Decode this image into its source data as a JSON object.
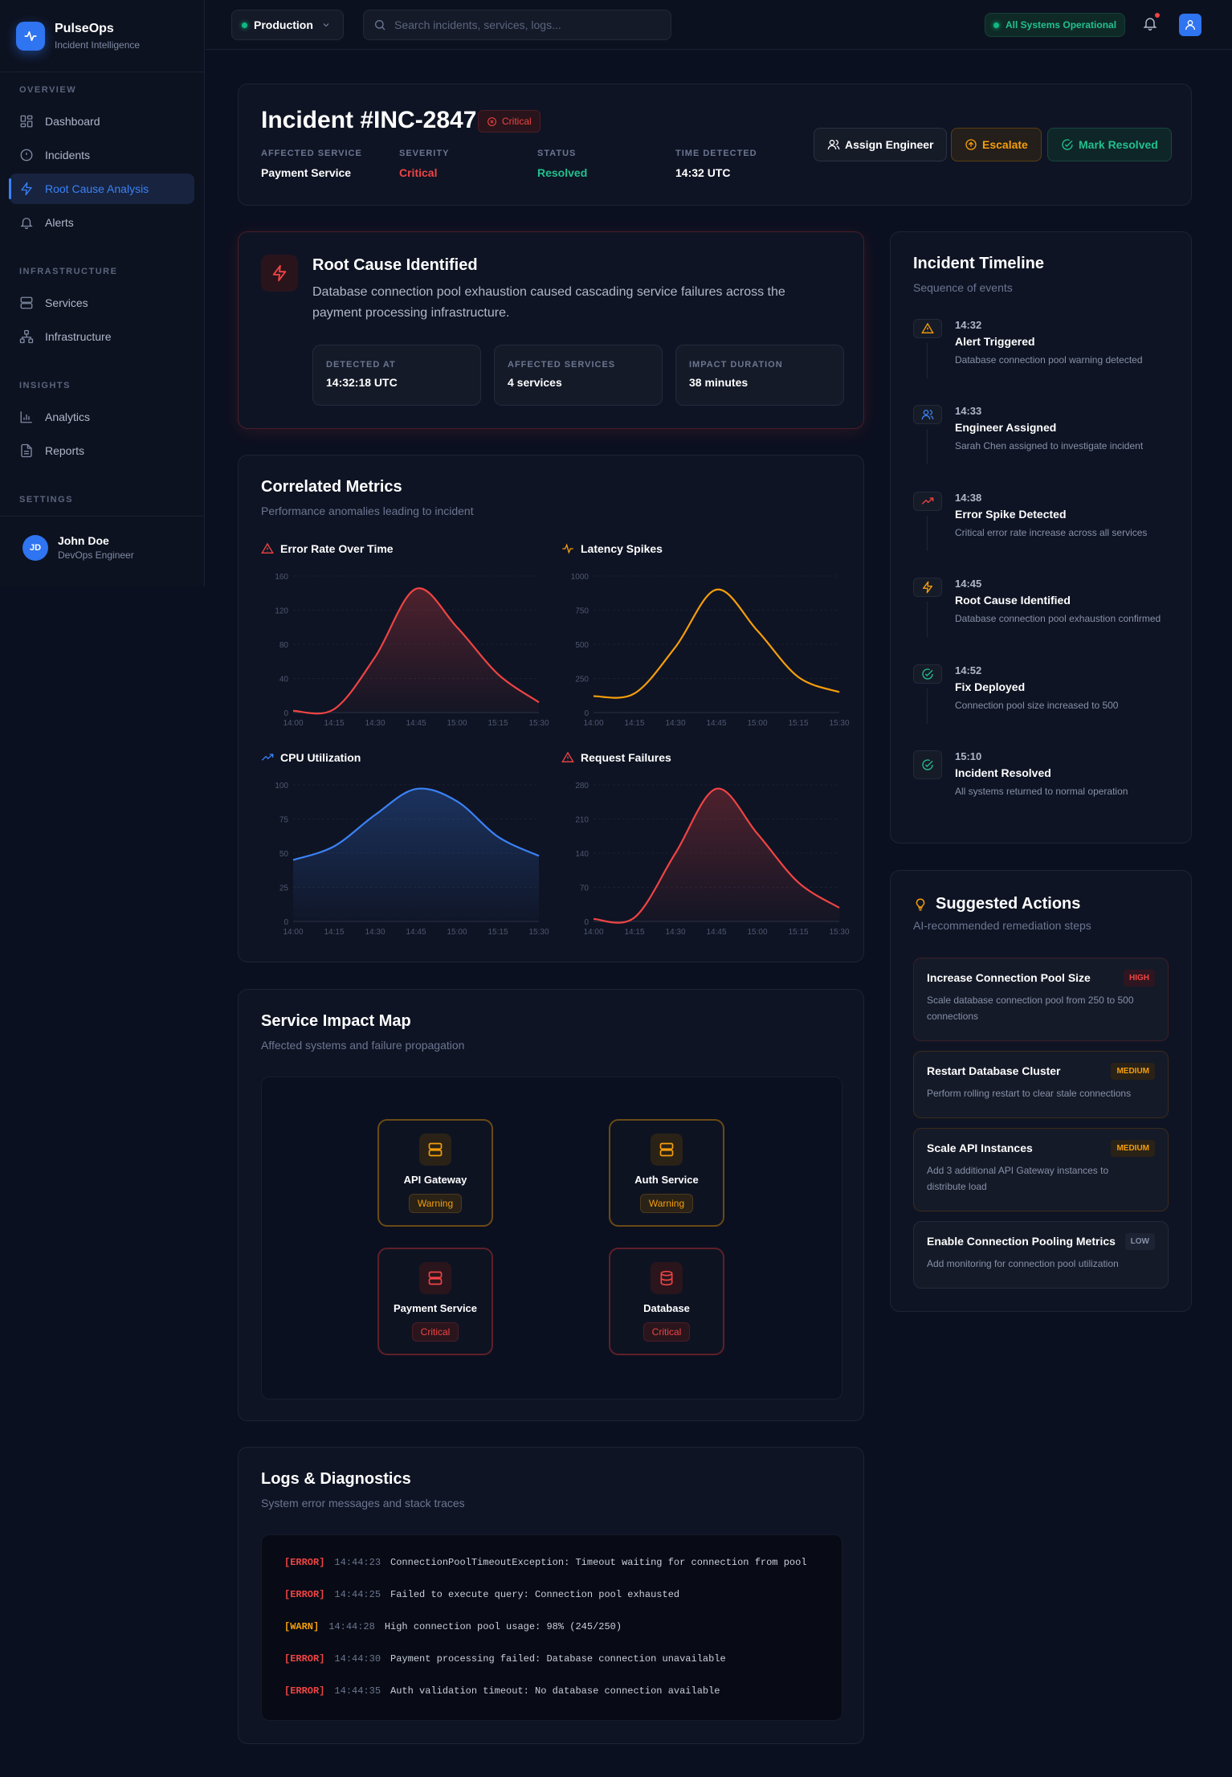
{
  "app": {
    "name": "PulseOps",
    "tagline": "Incident Intelligence"
  },
  "sidebar": {
    "sections": [
      {
        "label": "OVERVIEW",
        "items": [
          {
            "label": "Dashboard",
            "icon": "grid-icon",
            "active": false
          },
          {
            "label": "Incidents",
            "icon": "alert-circle-icon",
            "active": false
          },
          {
            "label": "Root Cause Analysis",
            "icon": "zap-icon",
            "active": true
          },
          {
            "label": "Alerts",
            "icon": "bell-icon",
            "active": false
          }
        ]
      },
      {
        "label": "INFRASTRUCTURE",
        "items": [
          {
            "label": "Services",
            "icon": "server-icon",
            "active": false
          },
          {
            "label": "Infrastructure",
            "icon": "network-icon",
            "active": false
          }
        ]
      },
      {
        "label": "INSIGHTS",
        "items": [
          {
            "label": "Analytics",
            "icon": "bar-chart-icon",
            "active": false
          },
          {
            "label": "Reports",
            "icon": "file-icon",
            "active": false
          }
        ]
      },
      {
        "label": "SETTINGS",
        "items": []
      }
    ],
    "user": {
      "initials": "JD",
      "name": "John Doe",
      "role": "DevOps Engineer"
    }
  },
  "topbar": {
    "environment": "Production",
    "search_placeholder": "Search incidents, services, logs...",
    "system_status": "All Systems Operational"
  },
  "incident": {
    "title": "Incident #INC-2847",
    "badge": "Critical",
    "meta": [
      {
        "label": "AFFECTED SERVICE",
        "value": "Payment Service",
        "color": "#ffffff"
      },
      {
        "label": "SEVERITY",
        "value": "Critical",
        "color": "#ef4444"
      },
      {
        "label": "STATUS",
        "value": "Resolved",
        "color": "#22c08e"
      },
      {
        "label": "TIME DETECTED",
        "value": "14:32 UTC",
        "color": "#ffffff"
      }
    ],
    "actions": {
      "assign": "Assign Engineer",
      "escalate": "Escalate",
      "resolve": "Mark Resolved"
    }
  },
  "root_cause": {
    "title": "Root Cause Identified",
    "description": "Database connection pool exhaustion caused cascading service failures across the payment processing infrastructure.",
    "stats": [
      {
        "label": "DETECTED AT",
        "value": "14:32:18 UTC"
      },
      {
        "label": "AFFECTED SERVICES",
        "value": "4 services"
      },
      {
        "label": "IMPACT DURATION",
        "value": "38 minutes"
      }
    ]
  },
  "metrics": {
    "title": "Correlated Metrics",
    "subtitle": "Performance anomalies leading to incident"
  },
  "chart_data": [
    {
      "type": "area",
      "title": "Error Rate Over Time",
      "color": "#ef4444",
      "x": [
        "14:00",
        "14:15",
        "14:30",
        "14:45",
        "15:00",
        "15:15",
        "15:30"
      ],
      "values": [
        2,
        4,
        65,
        145,
        100,
        45,
        12
      ],
      "yticks": [
        0,
        40,
        80,
        120,
        160
      ],
      "ylim": [
        0,
        160
      ]
    },
    {
      "type": "line",
      "title": "Latency Spikes",
      "color": "#f59e0b",
      "x": [
        "14:00",
        "14:15",
        "14:30",
        "14:45",
        "15:00",
        "15:15",
        "15:30"
      ],
      "values": [
        120,
        140,
        480,
        900,
        600,
        260,
        150
      ],
      "yticks": [
        0,
        250,
        500,
        750,
        1000
      ],
      "ylim": [
        0,
        1000
      ]
    },
    {
      "type": "area",
      "title": "CPU Utilization",
      "color": "#3b82f6",
      "x": [
        "14:00",
        "14:15",
        "14:30",
        "14:45",
        "15:00",
        "15:15",
        "15:30"
      ],
      "values": [
        45,
        55,
        78,
        97,
        88,
        62,
        48
      ],
      "yticks": [
        0,
        25,
        50,
        75,
        100
      ],
      "ylim": [
        0,
        100
      ]
    },
    {
      "type": "area",
      "title": "Request Failures",
      "color": "#ef4444",
      "x": [
        "14:00",
        "14:15",
        "14:30",
        "14:45",
        "15:00",
        "15:15",
        "15:30"
      ],
      "values": [
        5,
        8,
        140,
        272,
        180,
        80,
        28
      ],
      "yticks": [
        0,
        70,
        140,
        210,
        280
      ],
      "ylim": [
        0,
        280
      ]
    }
  ],
  "impact_map": {
    "title": "Service Impact Map",
    "subtitle": "Affected systems and failure propagation",
    "nodes": [
      {
        "name": "API Gateway",
        "status": "Warning",
        "icon": "server-icon"
      },
      {
        "name": "Auth Service",
        "status": "Warning",
        "icon": "server-icon"
      },
      {
        "name": "Payment Service",
        "status": "Critical",
        "icon": "server-icon"
      },
      {
        "name": "Database",
        "status": "Critical",
        "icon": "database-icon"
      }
    ]
  },
  "logs": {
    "title": "Logs & Diagnostics",
    "subtitle": "System error messages and stack traces",
    "lines": [
      {
        "level": "[ERROR]",
        "time": "14:44:23",
        "message": "ConnectionPoolTimeoutException: Timeout waiting for connection from pool"
      },
      {
        "level": "[ERROR]",
        "time": "14:44:25",
        "message": "Failed to execute query: Connection pool exhausted"
      },
      {
        "level": "[WARN]",
        "time": "14:44:28",
        "message": "High connection pool usage: 98% (245/250)"
      },
      {
        "level": "[ERROR]",
        "time": "14:44:30",
        "message": "Payment processing failed: Database connection unavailable"
      },
      {
        "level": "[ERROR]",
        "time": "14:44:35",
        "message": "Auth validation timeout: No database connection available"
      }
    ]
  },
  "timeline": {
    "title": "Incident Timeline",
    "subtitle": "Sequence of events",
    "events": [
      {
        "time": "14:32",
        "title": "Alert Triggered",
        "desc": "Database connection pool warning detected",
        "icon": "warning-icon"
      },
      {
        "time": "14:33",
        "title": "Engineer Assigned",
        "desc": "Sarah Chen assigned to investigate incident",
        "icon": "users-icon"
      },
      {
        "time": "14:38",
        "title": "Error Spike Detected",
        "desc": "Critical error rate increase across all services",
        "icon": "trending-up-icon"
      },
      {
        "time": "14:45",
        "title": "Root Cause Identified",
        "desc": "Database connection pool exhaustion confirmed",
        "icon": "zap-icon"
      },
      {
        "time": "14:52",
        "title": "Fix Deployed",
        "desc": "Connection pool size increased to 500",
        "icon": "check-circle-icon"
      },
      {
        "time": "15:10",
        "title": "Incident Resolved",
        "desc": "All systems returned to normal operation",
        "icon": "check-circle-icon"
      }
    ]
  },
  "suggested_actions": {
    "title": "Suggested Actions",
    "subtitle": "AI-recommended remediation steps",
    "items": [
      {
        "title": "Increase Connection Pool Size",
        "priority": "HIGH",
        "desc": "Scale database connection pool from 250 to 500 connections"
      },
      {
        "title": "Restart Database Cluster",
        "priority": "MEDIUM",
        "desc": "Perform rolling restart to clear stale connections"
      },
      {
        "title": "Scale API Instances",
        "priority": "MEDIUM",
        "desc": "Add 3 additional API Gateway instances to distribute load"
      },
      {
        "title": "Enable Connection Pooling Metrics",
        "priority": "LOW",
        "desc": "Add monitoring for connection pool utilization"
      }
    ]
  },
  "colors": {
    "accent": "#3b82f6",
    "critical": "#ef4444",
    "warning": "#f59e0b",
    "success": "#22c08e"
  }
}
